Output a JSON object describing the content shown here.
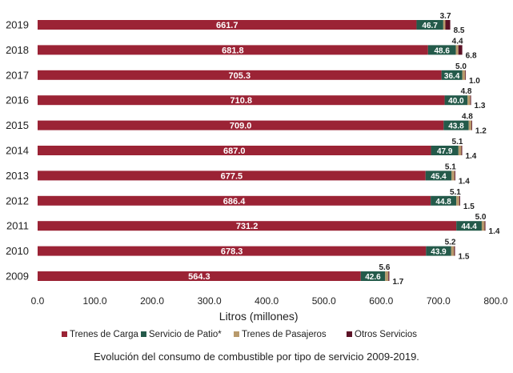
{
  "caption": "Evolución del consumo de combustible por tipo de servicio 2009-2019.",
  "colors": {
    "trenes_de_carga": "#9b2335",
    "servicio_de_patio": "#245a4a",
    "trenes_de_pasajeros": "#b89a6c",
    "otros_servicios": "#5c1226",
    "text": "#222222",
    "grid": "#d9d9d9"
  },
  "chart_data": {
    "type": "bar",
    "orientation": "horizontal",
    "stacked": true,
    "title": "",
    "xlabel": "Litros (millones)",
    "ylabel": "",
    "xlim": [
      0,
      800
    ],
    "x_ticks": [
      "0.0",
      "100.0",
      "200.0",
      "300.0",
      "400.0",
      "500.0",
      "600.0",
      "700.0",
      "800.0"
    ],
    "grid": false,
    "legend_position": "bottom",
    "categories": [
      "2019",
      "2018",
      "2017",
      "2016",
      "2015",
      "2014",
      "2013",
      "2012",
      "2011",
      "2010",
      "2009"
    ],
    "series": [
      {
        "name": "Trenes de Carga",
        "values": [
          661.7,
          681.8,
          705.3,
          710.8,
          709.0,
          687.0,
          677.5,
          686.4,
          731.2,
          678.3,
          564.3
        ],
        "labels": [
          "661.7",
          "681.8",
          "705.3",
          "710.8",
          "709.0",
          "687.0",
          "677.5",
          "686.4",
          "731.2",
          "678.3",
          "564.3"
        ]
      },
      {
        "name": "Servicio de Patio*",
        "values": [
          46.7,
          48.6,
          36.4,
          40.0,
          43.8,
          47.9,
          45.4,
          44.8,
          44.4,
          43.9,
          42.6
        ],
        "labels": [
          "46.7",
          "48.6",
          "36.4",
          "40.0",
          "43.8",
          "47.9",
          "45.4",
          "44.8",
          "44.4",
          "43.9",
          "42.6"
        ]
      },
      {
        "name": "Trenes de Pasajeros",
        "values": [
          3.7,
          4.4,
          5.0,
          4.8,
          4.8,
          5.1,
          5.1,
          5.1,
          5.0,
          5.2,
          5.6
        ],
        "labels": [
          "3.7",
          "4.4",
          "5.0",
          "4.8",
          "4.8",
          "5.1",
          "5.1",
          "5.1",
          "5.0",
          "5.2",
          "5.6"
        ]
      },
      {
        "name": "Otros Servicios",
        "values": [
          8.5,
          6.8,
          1.0,
          1.3,
          1.2,
          1.4,
          1.4,
          1.5,
          1.4,
          1.5,
          1.7
        ],
        "labels": [
          "8.5",
          "6.8",
          "1.0",
          "1.3",
          "1.2",
          "1.4",
          "1.4",
          "1.5",
          "1.4",
          "1.5",
          "1.7"
        ]
      }
    ]
  }
}
